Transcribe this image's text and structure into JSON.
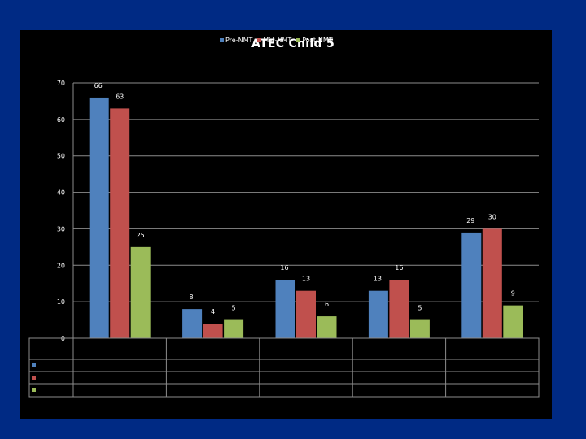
{
  "chart_data": {
    "type": "bar",
    "title": "ATEC Child 5",
    "categories": [
      "",
      "",
      "",
      "",
      ""
    ],
    "series": [
      {
        "name": "Pre-NMT",
        "color": "#4f81bd",
        "values": [
          66,
          8,
          16,
          13,
          29
        ]
      },
      {
        "name": "Mid-NMT",
        "color": "#c0504d",
        "values": [
          63,
          4,
          13,
          16,
          30
        ]
      },
      {
        "name": "Post-NMT",
        "color": "#9bbb59",
        "values": [
          25,
          5,
          6,
          5,
          9
        ]
      }
    ],
    "ylim": [
      0,
      70
    ],
    "yticks": [
      "0",
      "10",
      "20",
      "30",
      "40",
      "50",
      "60",
      "70"
    ],
    "grid": true,
    "legend": "top",
    "data_table": true
  }
}
